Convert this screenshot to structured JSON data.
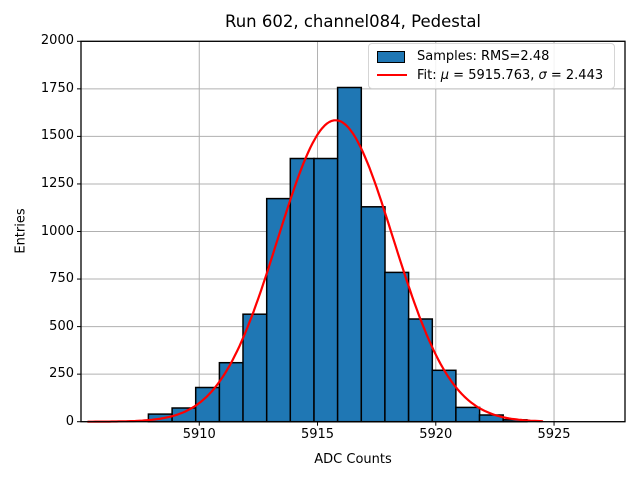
{
  "chart_data": {
    "type": "histogram+line",
    "title": "Run 602, channel084, Pedestal",
    "xlabel": "ADC Counts",
    "ylabel": "Entries",
    "xlim": [
      5905,
      5928
    ],
    "ylim": [
      0,
      2000
    ],
    "x_ticks": [
      5910,
      5915,
      5920,
      5925
    ],
    "y_ticks": [
      0,
      250,
      500,
      750,
      1000,
      1250,
      1500,
      1750,
      2000
    ],
    "grid": true,
    "colors": {
      "bar_fill": "#1f77b4",
      "bar_edge": "#000000",
      "fit_line": "#ff0000",
      "grid_line": "#b0b0b0",
      "spine": "#000000",
      "legend_border": "#d5d5d5"
    },
    "hist": {
      "bin_start": 5907.85,
      "bin_width": 1.0,
      "counts": [
        40,
        72,
        180,
        310,
        565,
        1173,
        1384,
        1384,
        1757,
        1130,
        785,
        540,
        270,
        75,
        35,
        10
      ]
    },
    "fit": {
      "mu": 5915.763,
      "sigma": 2.443,
      "amplitude": 1585,
      "x_range": [
        5905.3,
        5924.5
      ]
    },
    "legend": {
      "samples_label": "Samples: RMS=2.48",
      "fit_label": "Fit: μ = 5915.763, σ = 2.443"
    }
  }
}
